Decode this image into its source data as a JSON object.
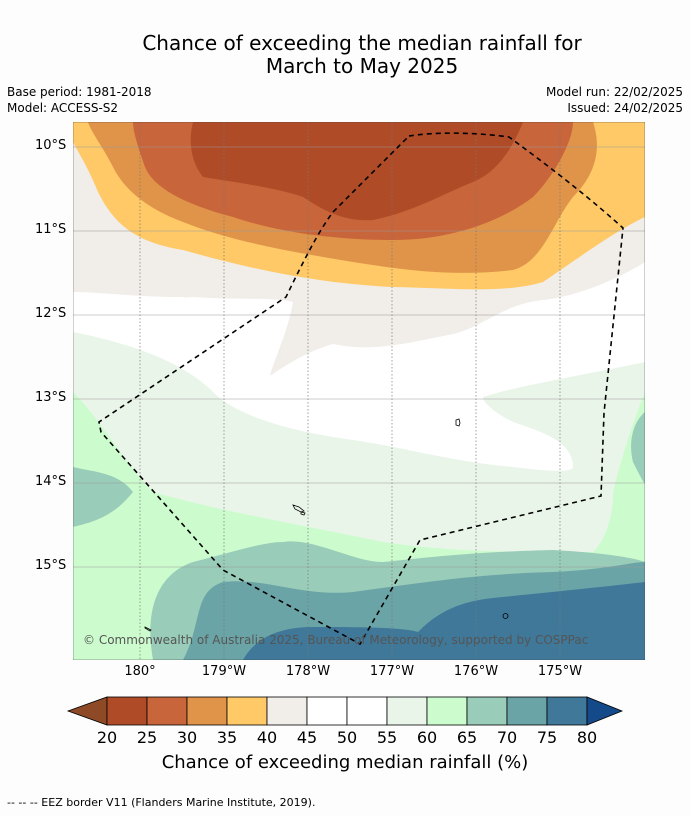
{
  "title": {
    "line1": "Chance of exceeding the median rainfall for",
    "line2": "March to May 2025"
  },
  "meta": {
    "base_period": "Base period: 1981-2018",
    "model": "Model: ACCESS-S2",
    "model_run": "Model run: 22/02/2025",
    "issued": "Issued: 24/02/2025"
  },
  "map": {
    "lat_labels": [
      "10°S",
      "11°S",
      "12°S",
      "13°S",
      "14°S",
      "15°S"
    ],
    "lon_labels": [
      "180°",
      "179°W",
      "178°W",
      "177°W",
      "176°W",
      "175°W"
    ],
    "copyright": "© Commonwealth of Australia 2025, Bureau of Meteorology, supported by COSPPac"
  },
  "colorbar": {
    "ticks": [
      "20",
      "25",
      "30",
      "35",
      "40",
      "45",
      "50",
      "55",
      "60",
      "65",
      "70",
      "75",
      "80"
    ],
    "title": "Chance of exceeding median rainfall (%)",
    "colors": {
      "under_20": "#8e4a26",
      "20_25": "#b04b28",
      "25_30": "#c9653a",
      "30_35": "#e0944a",
      "35_40": "#fec966",
      "40_45": "#f1ede8",
      "45_50": "#ffffff",
      "50_55": "#ffffff",
      "55_60": "#eaf5ea",
      "60_65": "#ccfccd",
      "65_70": "#99ccb9",
      "70_75": "#6ba4a6",
      "75_80": "#3f7899",
      "over_80": "#154a8a"
    }
  },
  "legend": {
    "footnote": "--  --  -- EEZ border V11 (Flanders Marine Institute, 2019)."
  }
}
